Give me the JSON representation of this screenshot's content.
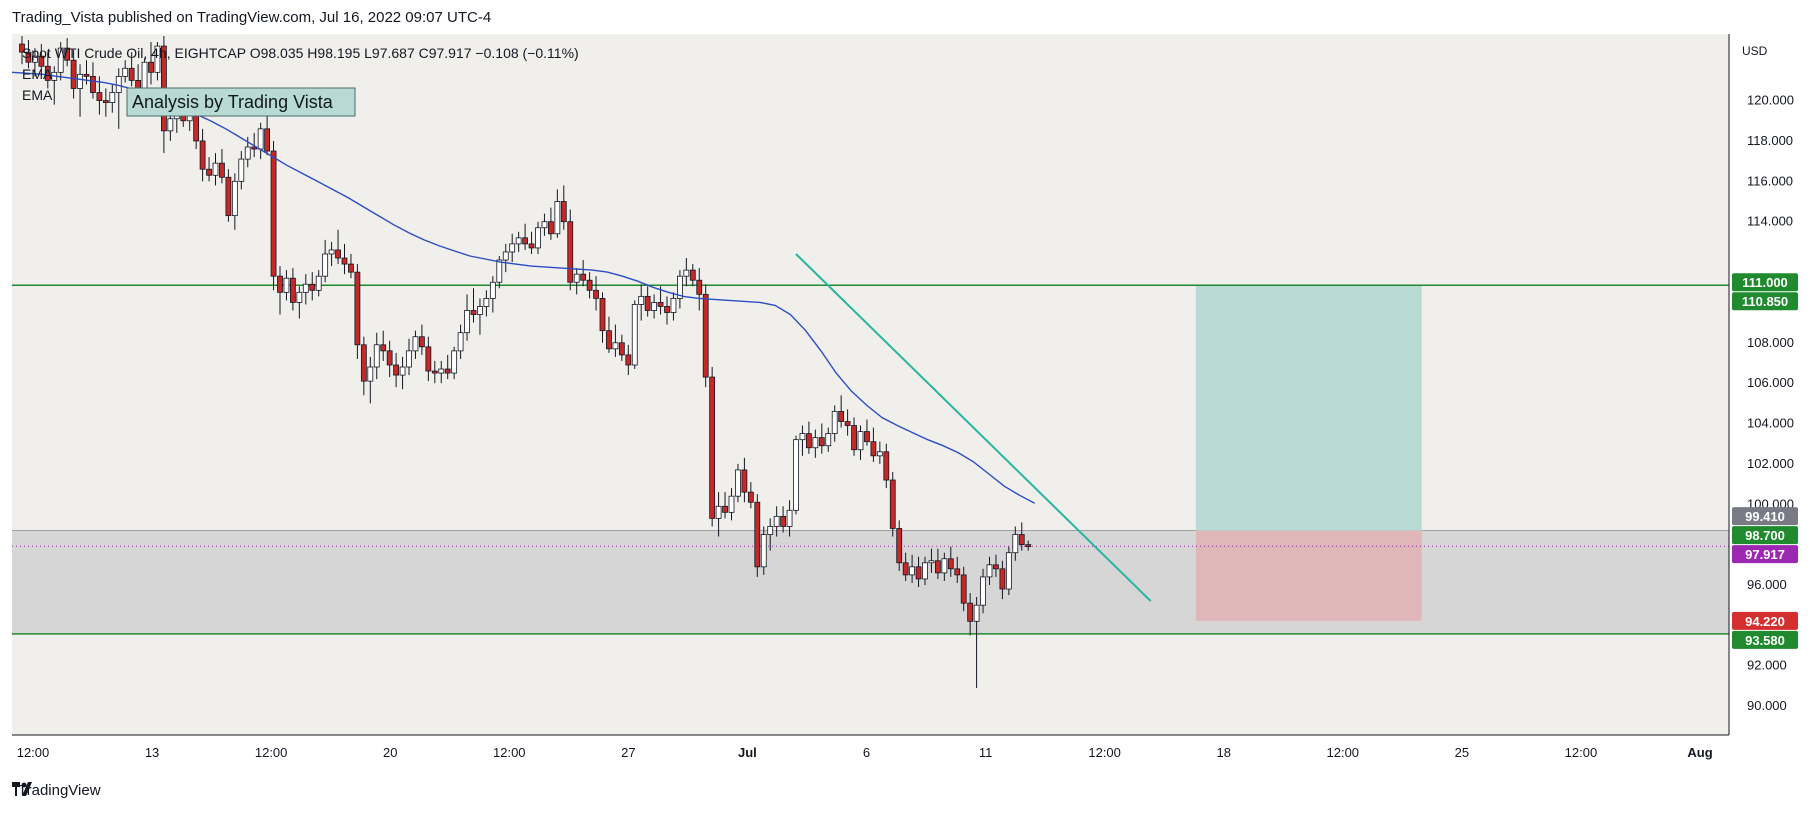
{
  "header": {
    "published": "Trading_Vista published on TradingView.com, Jul 16, 2022 09:07 UTC-4"
  },
  "footer": {
    "logo_icon": "tradingview-logo-icon",
    "brand": "TradingView"
  },
  "legend": {
    "symbol_line": "Spot WTI Crude Oil, 4h, EIGHTCAP  O98.035  H98.195  L97.687  C97.917  −0.108 (−0.11%)",
    "indicator_1": "EMA",
    "indicator_2": "EMA"
  },
  "annotation": {
    "text": "Analysis by Trading Vista"
  },
  "colors": {
    "up_body": "#ffffff",
    "down_body": "#c62828",
    "wick": "#131722",
    "ema": "#2a4dc4",
    "trendline": "#26b5a0",
    "hline": "#1f8a2e",
    "zone": "#d6d6d6",
    "target": "#b7dbd4",
    "stop": "#e2b2b4",
    "plot_bg": "#f0efeb"
  },
  "chart_data": {
    "type": "candlestick",
    "symbol": "Spot WTI Crude Oil",
    "timeframe": "4h",
    "exchange": "EIGHTCAP",
    "currency_label": "USD",
    "ylim": [
      90.5,
      123.2
    ],
    "y_ticks": [
      90,
      92,
      96,
      100,
      102,
      104,
      106,
      108,
      110,
      114,
      116,
      118,
      120
    ],
    "y_tick_labels": [
      "90.000",
      "92.000",
      "96.000",
      "100.000",
      "102.000",
      "104.000",
      "106.000",
      "108.000",
      "110.000",
      "114.000",
      "116.000",
      "118.000",
      "120.000"
    ],
    "x_ticks": [
      "12:00",
      "13",
      "12:00",
      "20",
      "12:00",
      "27",
      "Jul",
      "6",
      "11",
      "12:00",
      "18",
      "12:00",
      "25",
      "12:00",
      "Aug"
    ],
    "candles": [
      [
        122.8,
        123.2,
        121.8,
        122.4
      ],
      [
        122.4,
        123.0,
        121.6,
        121.9
      ],
      [
        121.9,
        122.6,
        121.2,
        122.2
      ],
      [
        122.2,
        122.8,
        121.5,
        121.7
      ],
      [
        121.7,
        122.4,
        120.6,
        121.0
      ],
      [
        121.0,
        121.7,
        119.8,
        121.4
      ],
      [
        121.4,
        122.9,
        121.0,
        122.6
      ],
      [
        122.6,
        123.1,
        121.7,
        122.0
      ],
      [
        122.0,
        122.5,
        120.1,
        120.6
      ],
      [
        120.6,
        121.8,
        119.2,
        121.3
      ],
      [
        121.3,
        122.0,
        120.8,
        121.2
      ],
      [
        121.2,
        121.9,
        120.1,
        120.4
      ],
      [
        120.4,
        121.2,
        119.3,
        120.0
      ],
      [
        120.0,
        120.6,
        119.2,
        119.9
      ],
      [
        119.9,
        120.8,
        119.4,
        120.4
      ],
      [
        120.4,
        121.6,
        118.6,
        121.2
      ],
      [
        121.2,
        122.0,
        120.9,
        121.6
      ],
      [
        121.6,
        122.4,
        120.7,
        121.0
      ],
      [
        121.0,
        121.8,
        119.9,
        120.5
      ],
      [
        120.5,
        122.1,
        120.2,
        121.9
      ],
      [
        121.9,
        122.9,
        120.8,
        121.4
      ],
      [
        121.4,
        122.9,
        121.0,
        122.7
      ],
      [
        122.7,
        123.2,
        117.4,
        118.5
      ],
      [
        118.5,
        119.6,
        118.0,
        119.1
      ],
      [
        119.1,
        120.0,
        118.4,
        119.6
      ],
      [
        119.6,
        120.3,
        118.7,
        119.0
      ],
      [
        119.0,
        119.8,
        118.5,
        119.4
      ],
      [
        119.4,
        120.1,
        117.6,
        118.0
      ],
      [
        118.0,
        118.6,
        116.0,
        116.6
      ],
      [
        116.6,
        117.2,
        116.0,
        116.3
      ],
      [
        116.3,
        117.4,
        115.8,
        116.9
      ],
      [
        116.9,
        117.6,
        115.9,
        116.2
      ],
      [
        116.2,
        116.6,
        114.0,
        114.3
      ],
      [
        114.3,
        116.4,
        113.6,
        116.0
      ],
      [
        116.0,
        117.5,
        115.6,
        117.1
      ],
      [
        117.1,
        118.2,
        116.7,
        117.7
      ],
      [
        117.7,
        118.4,
        117.2,
        117.6
      ],
      [
        117.6,
        118.9,
        117.1,
        118.6
      ],
      [
        118.6,
        119.3,
        117.3,
        117.5
      ],
      [
        117.5,
        118.0,
        110.6,
        111.3
      ],
      [
        111.3,
        111.8,
        109.4,
        110.5
      ],
      [
        110.5,
        111.6,
        110.1,
        111.2
      ],
      [
        111.2,
        111.7,
        109.6,
        110.0
      ],
      [
        110.0,
        110.8,
        109.2,
        110.5
      ],
      [
        110.5,
        111.4,
        109.9,
        110.9
      ],
      [
        110.9,
        111.5,
        110.1,
        110.6
      ],
      [
        110.6,
        111.6,
        110.3,
        111.3
      ],
      [
        111.3,
        113.1,
        111.0,
        112.4
      ],
      [
        112.4,
        113.0,
        111.8,
        112.6
      ],
      [
        112.6,
        113.6,
        111.9,
        112.2
      ],
      [
        112.2,
        112.9,
        111.4,
        111.9
      ],
      [
        111.9,
        112.4,
        111.2,
        111.5
      ],
      [
        111.5,
        111.9,
        107.2,
        107.9
      ],
      [
        107.9,
        108.3,
        105.4,
        106.1
      ],
      [
        106.1,
        107.3,
        105.0,
        106.8
      ],
      [
        106.8,
        108.5,
        106.2,
        107.9
      ],
      [
        107.9,
        108.6,
        107.1,
        107.6
      ],
      [
        107.6,
        108.1,
        106.3,
        106.9
      ],
      [
        106.9,
        107.5,
        105.8,
        106.4
      ],
      [
        106.4,
        107.3,
        105.7,
        106.8
      ],
      [
        106.8,
        108.2,
        106.4,
        107.6
      ],
      [
        107.6,
        108.6,
        107.2,
        108.3
      ],
      [
        108.3,
        108.9,
        107.4,
        107.8
      ],
      [
        107.8,
        108.3,
        106.1,
        106.6
      ],
      [
        106.6,
        107.1,
        106.0,
        106.5
      ],
      [
        106.5,
        107.1,
        106.0,
        106.7
      ],
      [
        106.7,
        107.4,
        106.2,
        106.5
      ],
      [
        106.5,
        107.8,
        106.2,
        107.6
      ],
      [
        107.6,
        108.9,
        107.2,
        108.5
      ],
      [
        108.5,
        110.4,
        108.1,
        109.6
      ],
      [
        109.6,
        110.7,
        109.0,
        109.4
      ],
      [
        109.4,
        110.2,
        108.4,
        109.8
      ],
      [
        109.8,
        110.6,
        109.3,
        110.2
      ],
      [
        110.2,
        111.3,
        109.5,
        111.0
      ],
      [
        111.0,
        112.3,
        110.7,
        112.1
      ],
      [
        112.1,
        112.9,
        111.5,
        112.5
      ],
      [
        112.5,
        113.4,
        112.0,
        112.9
      ],
      [
        112.9,
        113.5,
        112.5,
        113.2
      ],
      [
        113.2,
        113.9,
        112.6,
        112.9
      ],
      [
        112.9,
        113.5,
        112.4,
        112.7
      ],
      [
        112.7,
        114.0,
        112.4,
        113.7
      ],
      [
        113.7,
        114.4,
        113.3,
        114.0
      ],
      [
        114.0,
        114.7,
        113.1,
        113.4
      ],
      [
        113.4,
        115.6,
        113.2,
        115.0
      ],
      [
        115.0,
        115.8,
        113.6,
        114.0
      ],
      [
        114.0,
        114.6,
        110.6,
        111.0
      ],
      [
        111.0,
        111.7,
        110.4,
        111.4
      ],
      [
        111.4,
        112.1,
        110.8,
        111.1
      ],
      [
        111.1,
        111.5,
        110.2,
        110.6
      ],
      [
        110.6,
        111.3,
        109.6,
        110.2
      ],
      [
        110.2,
        110.5,
        108.0,
        108.6
      ],
      [
        108.6,
        109.3,
        107.5,
        107.7
      ],
      [
        107.7,
        108.9,
        107.3,
        108.0
      ],
      [
        108.0,
        108.4,
        107.1,
        107.4
      ],
      [
        107.4,
        107.9,
        106.4,
        106.9
      ],
      [
        106.9,
        110.1,
        106.7,
        109.9
      ],
      [
        109.9,
        110.9,
        109.1,
        110.3
      ],
      [
        110.3,
        110.8,
        109.3,
        109.6
      ],
      [
        109.6,
        110.4,
        109.2,
        110.0
      ],
      [
        110.0,
        110.8,
        109.4,
        109.8
      ],
      [
        109.8,
        110.3,
        108.9,
        109.5
      ],
      [
        109.5,
        110.5,
        109.1,
        110.2
      ],
      [
        110.2,
        111.6,
        109.7,
        111.3
      ],
      [
        111.3,
        112.2,
        110.8,
        111.6
      ],
      [
        111.6,
        111.9,
        110.8,
        111.1
      ],
      [
        111.1,
        111.7,
        109.6,
        110.4
      ],
      [
        110.4,
        110.9,
        105.8,
        106.3
      ],
      [
        106.3,
        106.8,
        98.9,
        99.3
      ],
      [
        99.3,
        100.6,
        98.4,
        99.9
      ],
      [
        99.9,
        100.6,
        99.3,
        99.6
      ],
      [
        99.6,
        100.8,
        99.2,
        100.4
      ],
      [
        100.4,
        102.0,
        100.1,
        101.7
      ],
      [
        101.7,
        102.3,
        100.1,
        100.6
      ],
      [
        100.6,
        101.1,
        99.8,
        100.1
      ],
      [
        100.1,
        100.5,
        96.4,
        96.9
      ],
      [
        96.9,
        98.9,
        96.5,
        98.5
      ],
      [
        98.5,
        99.3,
        97.7,
        98.9
      ],
      [
        98.9,
        99.9,
        98.4,
        99.4
      ],
      [
        99.4,
        99.9,
        98.6,
        98.9
      ],
      [
        98.9,
        100.2,
        98.4,
        99.7
      ],
      [
        99.7,
        103.4,
        99.5,
        103.2
      ],
      [
        103.2,
        103.9,
        102.4,
        103.5
      ],
      [
        103.5,
        104.1,
        102.5,
        102.8
      ],
      [
        102.8,
        103.7,
        102.3,
        103.3
      ],
      [
        103.3,
        104.0,
        102.5,
        102.9
      ],
      [
        102.9,
        103.8,
        102.6,
        103.5
      ],
      [
        103.5,
        104.9,
        103.1,
        104.6
      ],
      [
        104.6,
        105.4,
        103.8,
        104.1
      ],
      [
        104.1,
        104.7,
        103.4,
        103.9
      ],
      [
        103.9,
        104.3,
        102.4,
        102.7
      ],
      [
        102.7,
        103.9,
        102.2,
        103.6
      ],
      [
        103.6,
        104.2,
        102.9,
        103.1
      ],
      [
        103.1,
        103.8,
        102.1,
        102.4
      ],
      [
        102.4,
        103.1,
        102.0,
        102.6
      ],
      [
        102.6,
        103.0,
        100.8,
        101.2
      ],
      [
        101.2,
        101.6,
        98.4,
        98.8
      ],
      [
        98.8,
        99.2,
        96.7,
        97.1
      ],
      [
        97.1,
        97.6,
        96.2,
        96.5
      ],
      [
        96.5,
        97.5,
        96.1,
        96.9
      ],
      [
        96.9,
        97.4,
        95.9,
        96.3
      ],
      [
        96.3,
        97.4,
        96.0,
        97.1
      ],
      [
        97.1,
        97.8,
        96.6,
        97.2
      ],
      [
        97.2,
        97.8,
        96.3,
        96.6
      ],
      [
        96.6,
        97.6,
        96.2,
        97.3
      ],
      [
        97.3,
        97.9,
        96.4,
        96.8
      ],
      [
        96.8,
        97.4,
        96.1,
        96.5
      ],
      [
        96.5,
        96.9,
        94.7,
        95.1
      ],
      [
        95.1,
        95.6,
        93.5,
        94.2
      ],
      [
        94.2,
        95.4,
        90.9,
        95.0
      ],
      [
        95.0,
        96.8,
        94.6,
        96.4
      ],
      [
        96.4,
        97.4,
        96.0,
        97.0
      ],
      [
        97.0,
        97.5,
        96.4,
        96.8
      ],
      [
        96.8,
        97.2,
        95.3,
        95.8
      ],
      [
        95.8,
        97.9,
        95.5,
        97.6
      ],
      [
        97.6,
        98.9,
        97.2,
        98.5
      ],
      [
        98.5,
        99.1,
        97.7,
        98.0
      ],
      [
        98.0,
        98.2,
        97.7,
        97.9
      ]
    ],
    "ema": [
      121.4,
      121.35,
      121.3,
      121.2,
      121.1,
      121.0,
      120.9,
      120.75,
      120.55,
      120.3,
      120.0,
      119.7,
      119.35,
      119.0,
      118.6,
      118.15,
      117.7,
      117.25,
      116.8,
      116.4,
      116.0,
      115.6,
      115.2,
      114.75,
      114.3,
      113.85,
      113.45,
      113.1,
      112.8,
      112.55,
      112.3,
      112.15,
      112.0,
      111.9,
      111.8,
      111.75,
      111.7,
      111.65,
      111.6,
      111.5,
      111.3,
      111.05,
      110.75,
      110.5,
      110.3,
      110.2,
      110.15,
      110.1,
      110.05,
      110.0,
      109.85,
      109.4,
      108.6,
      107.6,
      106.5,
      105.6,
      104.9,
      104.3,
      103.9,
      103.55,
      103.2,
      102.9,
      102.55,
      102.1,
      101.5,
      100.9,
      100.45,
      100.05
    ],
    "ema_x_start_fraction": 0.0,
    "ema_x_end_index": 157,
    "trendline": {
      "from": [
        120,
        112.4
      ],
      "to": [
        175,
        95.2
      ]
    },
    "horizontal_levels": [
      110.85,
      93.58
    ],
    "zone": [
      93.58,
      98.7
    ],
    "last_price": 97.917,
    "position": {
      "entry": 98.7,
      "target": 110.85,
      "stop": 94.22,
      "x_from": 182,
      "x_to": 217
    },
    "price_labels": [
      {
        "value": 111.0,
        "text": "111.000",
        "color": "#1f8a2e"
      },
      {
        "value": 110.85,
        "text": "110.850",
        "color": "#1f8a2e"
      },
      {
        "value": 99.41,
        "text": "99.410",
        "color": "#787b86"
      },
      {
        "value": 98.7,
        "text": "98.700",
        "color": "#1f8a2e"
      },
      {
        "value": 97.917,
        "text": "97.917",
        "color": "#9c27b0"
      },
      {
        "value": 94.22,
        "text": "94.220",
        "color": "#d32f2f"
      },
      {
        "value": 93.58,
        "text": "93.580",
        "color": "#1f8a2e"
      }
    ]
  }
}
